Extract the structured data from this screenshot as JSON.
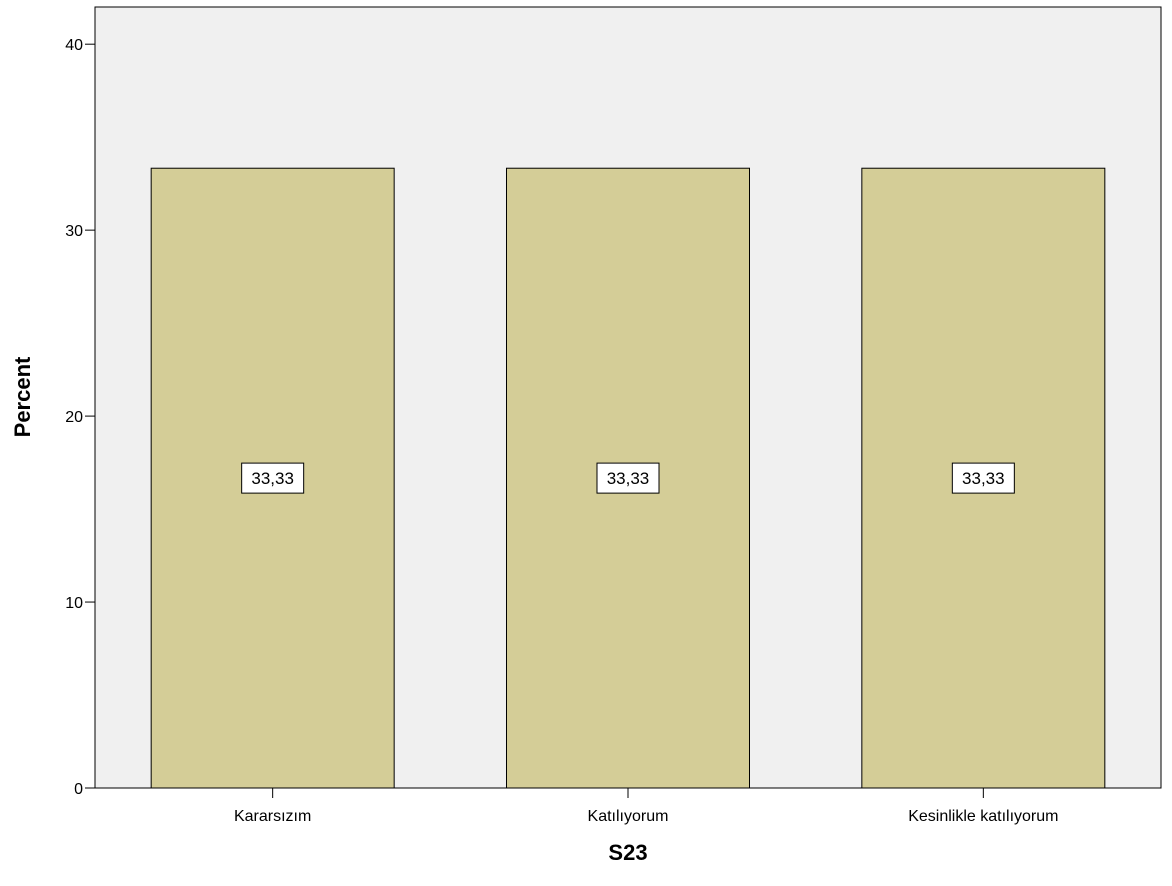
{
  "chart_data": {
    "type": "bar",
    "categories": [
      "Kararsızım",
      "Katılıyorum",
      "Kesinlikle katılıyorum"
    ],
    "values": [
      33.33,
      33.33,
      33.33
    ],
    "data_labels": [
      "33,33",
      "33,33",
      "33,33"
    ],
    "xlabel": "S23",
    "ylabel": "Percent",
    "ylim": [
      0,
      42
    ],
    "yticks": [
      0,
      10,
      20,
      30,
      40
    ],
    "grid": false,
    "colors": {
      "bar_fill": "#d4cd97",
      "bar_stroke": "#000000",
      "plot_background": "#f0f0f0",
      "label_box_fill": "#ffffff"
    }
  }
}
